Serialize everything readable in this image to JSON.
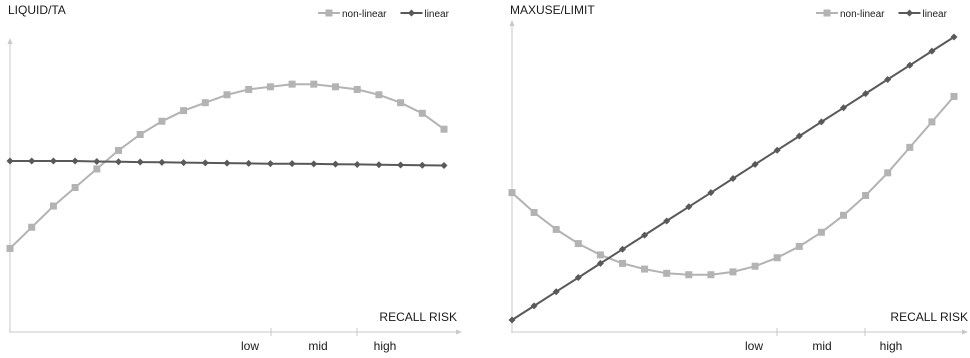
{
  "chart_data": [
    {
      "type": "line",
      "title": "LIQUID/TA",
      "xlabel": "RECALL RISK",
      "ylabel": "",
      "x_tick_labels": [
        "low",
        "mid",
        "high"
      ],
      "x": [
        0,
        1,
        2,
        3,
        4,
        5,
        6,
        7,
        8,
        9,
        10,
        11,
        12,
        13,
        14,
        15,
        16,
        17,
        18,
        19,
        20
      ],
      "ylim": [
        0,
        100
      ],
      "grid": false,
      "legend_position": "top-right",
      "colors": {
        "non-linear": "#b3b3b3",
        "linear": "#595959"
      },
      "series": [
        {
          "name": "non-linear",
          "marker": "square",
          "values": [
            27,
            35,
            43,
            50,
            57,
            64,
            70,
            75,
            79,
            82,
            85,
            87,
            88,
            89,
            89,
            88,
            87,
            85,
            82,
            78,
            72
          ]
        },
        {
          "name": "linear",
          "marker": "diamond",
          "values": [
            60,
            60,
            60,
            60,
            59.8,
            59.7,
            59.6,
            59.5,
            59.4,
            59.3,
            59.2,
            59.1,
            59,
            59,
            58.9,
            58.8,
            58.7,
            58.6,
            58.5,
            58.4,
            58.3
          ]
        }
      ]
    },
    {
      "type": "line",
      "title": "MAXUSE/LIMIT",
      "xlabel": "RECALL RISK",
      "ylabel": "",
      "x_tick_labels": [
        "low",
        "mid",
        "high"
      ],
      "x": [
        0,
        1,
        2,
        3,
        4,
        5,
        6,
        7,
        8,
        9,
        10,
        11,
        12,
        13,
        14,
        15,
        16,
        17,
        18,
        19,
        20
      ],
      "ylim": [
        0,
        100
      ],
      "grid": false,
      "legend_position": "top-right",
      "colors": {
        "non-linear": "#b3b3b3",
        "linear": "#595959"
      },
      "series": [
        {
          "name": "non-linear",
          "marker": "square",
          "values": [
            45,
            38,
            32,
            27,
            23,
            20,
            18,
            16.5,
            16,
            16,
            17,
            19,
            22,
            26,
            31,
            37,
            44,
            52,
            61,
            70,
            79
          ]
        },
        {
          "name": "linear",
          "marker": "diamond",
          "values": [
            0,
            5,
            10,
            15,
            20,
            25,
            30,
            35,
            40,
            45,
            50,
            55,
            60,
            65,
            70,
            75,
            80,
            85,
            90,
            95,
            100
          ]
        }
      ]
    }
  ]
}
